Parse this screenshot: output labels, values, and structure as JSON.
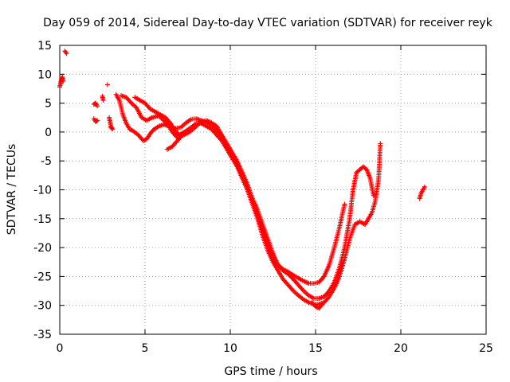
{
  "chart_data": {
    "type": "scatter",
    "title": "Day 059 of 2014, Sidereal Day-to-day VTEC variation (SDTVAR) for receiver reyk",
    "xlabel": "GPS time / hours",
    "ylabel": "SDTVAR / TECUs",
    "xlim": [
      0,
      25
    ],
    "ylim": [
      -35,
      15
    ],
    "grid": true,
    "marker": "+",
    "color": "#ff0000",
    "xticks": [
      "0",
      "5",
      "10",
      "15",
      "20",
      "25"
    ],
    "yticks": [
      "15",
      "10",
      "5",
      "0",
      "-5",
      "-10",
      "-15",
      "-20",
      "-25",
      "-30",
      "-35"
    ],
    "series": [
      {
        "name": "segments",
        "segments": [
          [
            [
              0.0,
              7.8
            ],
            [
              0.05,
              8.5
            ],
            [
              0.1,
              9.2
            ],
            [
              0.15,
              9.5
            ],
            [
              0.2,
              8.8
            ]
          ],
          [
            [
              0.3,
              14.0
            ],
            [
              0.35,
              13.8
            ],
            [
              0.4,
              13.6
            ]
          ],
          [
            [
              2.0,
              4.8
            ],
            [
              2.1,
              5.0
            ],
            [
              2.2,
              4.5
            ]
          ],
          [
            [
              2.0,
              2.3
            ],
            [
              2.1,
              1.8
            ],
            [
              2.2,
              2.0
            ]
          ],
          [
            [
              2.5,
              6.2
            ],
            [
              2.55,
              5.5
            ]
          ],
          [
            [
              2.8,
              8.2
            ]
          ],
          [
            [
              2.9,
              2.5
            ],
            [
              3.0,
              1.0
            ],
            [
              3.1,
              0.5
            ],
            [
              3.0,
              0.8
            ]
          ],
          [
            [
              3.3,
              6.5
            ],
            [
              3.5,
              5.5
            ],
            [
              3.7,
              3.0
            ],
            [
              3.9,
              1.5
            ],
            [
              4.1,
              0.5
            ],
            [
              4.3,
              0.2
            ],
            [
              4.6,
              -0.5
            ],
            [
              4.9,
              -1.5
            ],
            [
              5.1,
              -1.2
            ],
            [
              5.3,
              -0.3
            ],
            [
              5.5,
              0.4
            ],
            [
              5.8,
              1.0
            ],
            [
              6.1,
              1.3
            ],
            [
              6.4,
              1.0
            ],
            [
              6.8,
              0.6
            ],
            [
              7.1,
              0.8
            ],
            [
              7.4,
              1.6
            ],
            [
              7.7,
              2.2
            ],
            [
              8.0,
              2.3
            ],
            [
              8.3,
              2.0
            ],
            [
              8.6,
              1.6
            ],
            [
              8.9,
              1.2
            ],
            [
              9.2,
              0.3
            ],
            [
              9.5,
              -1.0
            ],
            [
              9.8,
              -2.5
            ],
            [
              10.1,
              -4.0
            ],
            [
              10.4,
              -5.5
            ],
            [
              10.7,
              -7.5
            ],
            [
              11.0,
              -9.5
            ],
            [
              11.3,
              -12.0
            ],
            [
              11.6,
              -14.5
            ],
            [
              11.9,
              -17.0
            ],
            [
              12.2,
              -19.5
            ],
            [
              12.5,
              -22.0
            ],
            [
              12.8,
              -23.0
            ],
            [
              13.1,
              -23.8
            ],
            [
              13.4,
              -24.2
            ],
            [
              13.7,
              -24.8
            ],
            [
              14.0,
              -25.3
            ],
            [
              14.3,
              -25.8
            ],
            [
              14.6,
              -26.2
            ],
            [
              14.9,
              -26.2
            ],
            [
              15.2,
              -26.0
            ],
            [
              15.5,
              -25.0
            ],
            [
              15.8,
              -23.0
            ],
            [
              16.1,
              -20.0
            ],
            [
              16.4,
              -16.5
            ],
            [
              16.7,
              -12.5
            ]
          ],
          [
            [
              3.6,
              6.3
            ],
            [
              3.9,
              6.0
            ],
            [
              4.2,
              5.0
            ],
            [
              4.5,
              4.2
            ],
            [
              4.8,
              2.5
            ],
            [
              5.1,
              2.0
            ],
            [
              5.4,
              2.5
            ],
            [
              5.8,
              2.8
            ],
            [
              6.1,
              2.0
            ],
            [
              6.4,
              1.0
            ],
            [
              6.6,
              0.0
            ],
            [
              6.9,
              -1.0
            ],
            [
              7.3,
              -0.5
            ],
            [
              7.7,
              0.2
            ],
            [
              8.0,
              1.0
            ],
            [
              8.3,
              1.8
            ],
            [
              8.6,
              2.0
            ],
            [
              8.9,
              1.6
            ],
            [
              9.2,
              1.0
            ],
            [
              9.5,
              -0.5
            ],
            [
              9.8,
              -2.0
            ],
            [
              10.1,
              -3.5
            ],
            [
              10.4,
              -5.0
            ],
            [
              10.7,
              -7.0
            ],
            [
              11.0,
              -9.0
            ],
            [
              11.3,
              -11.5
            ],
            [
              11.6,
              -13.5
            ],
            [
              11.9,
              -16.0
            ],
            [
              12.2,
              -18.5
            ],
            [
              12.5,
              -21.0
            ],
            [
              12.8,
              -23.0
            ],
            [
              13.1,
              -24.0
            ],
            [
              13.4,
              -24.6
            ],
            [
              13.7,
              -25.5
            ],
            [
              14.0,
              -26.5
            ],
            [
              14.3,
              -27.5
            ],
            [
              14.6,
              -28.3
            ],
            [
              14.9,
              -28.8
            ],
            [
              15.2,
              -28.8
            ],
            [
              15.5,
              -28.5
            ],
            [
              15.8,
              -27.5
            ],
            [
              16.1,
              -26.0
            ],
            [
              16.4,
              -23.5
            ],
            [
              16.7,
              -20.0
            ],
            [
              17.0,
              -15.0
            ],
            [
              17.2,
              -10.0
            ],
            [
              17.4,
              -7.0
            ],
            [
              17.6,
              -6.5
            ],
            [
              17.8,
              -6.0
            ],
            [
              18.0,
              -6.5
            ],
            [
              18.2,
              -8.0
            ],
            [
              18.4,
              -11.0
            ]
          ],
          [
            [
              4.4,
              6.0
            ],
            [
              4.7,
              5.5
            ],
            [
              5.0,
              5.0
            ],
            [
              5.3,
              4.0
            ],
            [
              5.6,
              3.5
            ],
            [
              5.9,
              3.0
            ],
            [
              6.2,
              2.5
            ],
            [
              6.5,
              1.5
            ],
            [
              6.7,
              0.5
            ],
            [
              7.0,
              -0.5
            ],
            [
              7.3,
              0.0
            ],
            [
              7.7,
              0.8
            ],
            [
              8.0,
              1.5
            ],
            [
              8.3,
              1.5
            ],
            [
              8.6,
              1.0
            ],
            [
              8.9,
              0.5
            ],
            [
              9.2,
              -0.5
            ],
            [
              9.5,
              -1.5
            ],
            [
              9.8,
              -3.0
            ],
            [
              10.1,
              -4.5
            ],
            [
              10.4,
              -6.0
            ],
            [
              10.7,
              -8.0
            ],
            [
              11.0,
              -10.0
            ],
            [
              11.3,
              -12.5
            ],
            [
              11.6,
              -15.0
            ],
            [
              11.9,
              -18.0
            ],
            [
              12.2,
              -20.5
            ],
            [
              12.5,
              -22.5
            ],
            [
              12.8,
              -24.0
            ],
            [
              13.1,
              -25.5
            ],
            [
              13.4,
              -26.5
            ],
            [
              13.7,
              -27.5
            ],
            [
              14.0,
              -28.3
            ],
            [
              14.3,
              -29.0
            ],
            [
              14.6,
              -29.5
            ],
            [
              14.9,
              -29.8
            ],
            [
              15.2,
              -29.8
            ],
            [
              15.5,
              -29.5
            ],
            [
              15.8,
              -28.5
            ],
            [
              16.1,
              -27.0
            ],
            [
              16.4,
              -25.0
            ],
            [
              16.7,
              -22.0
            ],
            [
              17.0,
              -18.5
            ],
            [
              17.3,
              -16.0
            ],
            [
              17.6,
              -15.5
            ],
            [
              17.9,
              -16.0
            ],
            [
              18.1,
              -15.0
            ],
            [
              18.3,
              -14.0
            ],
            [
              18.5,
              -12.0
            ],
            [
              18.7,
              -8.0
            ],
            [
              18.8,
              -2.0
            ]
          ],
          [
            [
              6.3,
              -3.0
            ],
            [
              6.6,
              -2.5
            ],
            [
              6.9,
              -1.5
            ],
            [
              7.2,
              -0.5
            ]
          ],
          [
            [
              14.8,
              -29.5
            ],
            [
              15.0,
              -30.2
            ],
            [
              15.2,
              -30.5
            ],
            [
              15.4,
              -29.8
            ]
          ],
          [
            [
              21.1,
              -11.5
            ],
            [
              21.2,
              -10.5
            ],
            [
              21.3,
              -10.0
            ],
            [
              21.4,
              -9.5
            ]
          ]
        ]
      }
    ]
  }
}
